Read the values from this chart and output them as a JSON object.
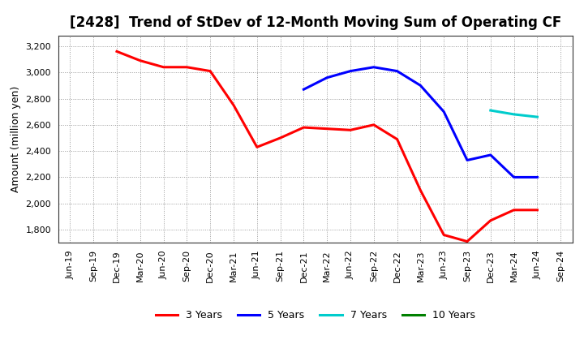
{
  "title": "[2428]  Trend of StDev of 12-Month Moving Sum of Operating CF",
  "ylabel": "Amount (million yen)",
  "background_color": "#ffffff",
  "plot_bg_color": "#ffffff",
  "x_labels": [
    "Jun-19",
    "Sep-19",
    "Dec-19",
    "Mar-20",
    "Jun-20",
    "Sep-20",
    "Dec-20",
    "Mar-21",
    "Jun-21",
    "Sep-21",
    "Dec-21",
    "Mar-22",
    "Jun-22",
    "Sep-22",
    "Dec-22",
    "Mar-23",
    "Jun-23",
    "Sep-23",
    "Dec-23",
    "Mar-24",
    "Jun-24",
    "Sep-24"
  ],
  "series": {
    "3 Years": {
      "color": "#ff0000",
      "data_x": [
        "Dec-19",
        "Mar-20",
        "Jun-20",
        "Sep-20",
        "Dec-20",
        "Mar-21",
        "Jun-21",
        "Sep-21",
        "Dec-21",
        "Mar-22",
        "Jun-22",
        "Sep-22",
        "Dec-22",
        "Mar-23",
        "Jun-23",
        "Sep-23",
        "Dec-23",
        "Mar-24",
        "Jun-24"
      ],
      "data_y": [
        3160,
        3090,
        3040,
        3040,
        3010,
        2750,
        2430,
        2500,
        2580,
        2570,
        2560,
        2600,
        2490,
        2100,
        1760,
        1710,
        1870,
        1950,
        1950
      ]
    },
    "5 Years": {
      "color": "#0000ff",
      "data_x": [
        "Dec-21",
        "Mar-22",
        "Jun-22",
        "Sep-22",
        "Dec-22",
        "Mar-23",
        "Jun-23",
        "Sep-23",
        "Dec-23",
        "Mar-24",
        "Jun-24"
      ],
      "data_y": [
        2870,
        2960,
        3010,
        3040,
        3010,
        2900,
        2700,
        2330,
        2370,
        2200,
        2200
      ]
    },
    "7 Years": {
      "color": "#00cccc",
      "data_x": [
        "Dec-23",
        "Mar-24",
        "Jun-24"
      ],
      "data_y": [
        2710,
        2680,
        2660
      ]
    },
    "10 Years": {
      "color": "#008000",
      "data_x": [],
      "data_y": []
    }
  },
  "ylim": [
    1700,
    3280
  ],
  "yticks": [
    1800,
    2000,
    2200,
    2400,
    2600,
    2800,
    3000,
    3200
  ],
  "grid_color": "#999999",
  "title_fontsize": 12,
  "axis_fontsize": 9,
  "tick_fontsize": 8,
  "legend_fontsize": 9,
  "linewidth": 2.2
}
